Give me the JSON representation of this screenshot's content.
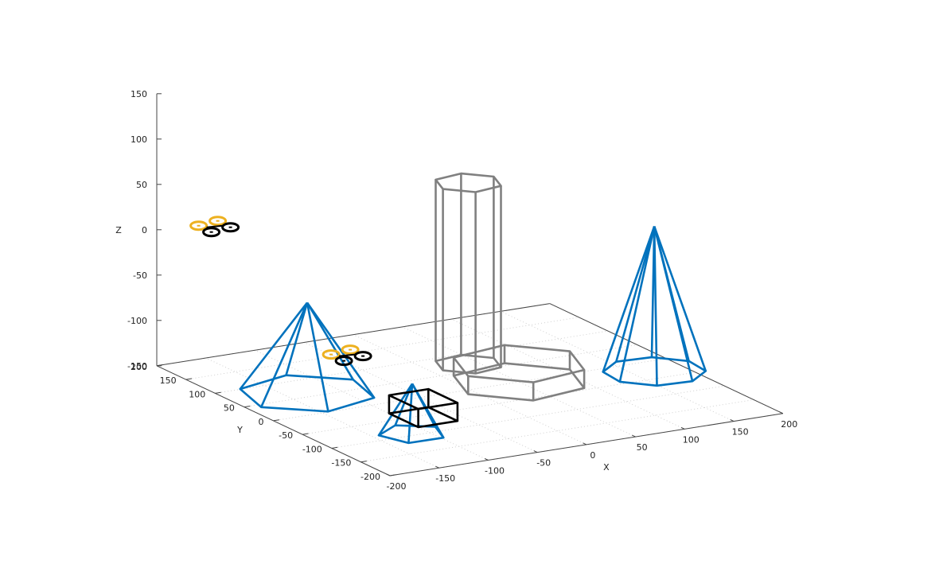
{
  "chart_data": {
    "type": "3d-wireframe",
    "title": "",
    "xlabel": "X",
    "ylabel": "Y",
    "zlabel": "Z",
    "xlim": [
      -200,
      200
    ],
    "ylim": [
      -200,
      200
    ],
    "zlim": [
      -150,
      150
    ],
    "x_ticks": [
      "-200",
      "-150",
      "-100",
      "-50",
      "0",
      "50",
      "100",
      "150",
      "200"
    ],
    "y_ticks": [
      "-200",
      "-150",
      "-100",
      "-50",
      "0",
      "50",
      "100",
      "150",
      "200"
    ],
    "z_ticks": [
      "-150",
      "-100",
      "-50",
      "0",
      "50",
      "100",
      "150"
    ],
    "floor_grid": true,
    "colors": {
      "blue": "#0072bd",
      "gray": "#808080",
      "black": "#000000",
      "gold": "#edb120",
      "grid": "#d0d0d0",
      "axis": "#000000"
    },
    "objects": [
      {
        "name": "pyramid-hexagonal",
        "type": "pyramid",
        "center": [
          -130,
          60
        ],
        "z_base": -150,
        "z_apex": -50,
        "radius": 60,
        "sides": 6,
        "color": "blue"
      },
      {
        "name": "pyramid-pentagonal-small",
        "type": "pyramid",
        "center": [
          -115,
          -95
        ],
        "z_base": -150,
        "z_apex": -95,
        "radius": 30,
        "sides": 5,
        "color": "blue"
      },
      {
        "name": "cone-octagonal",
        "type": "pyramid",
        "center": [
          170,
          -30
        ],
        "z_base": -150,
        "z_apex": 10,
        "radius": 45,
        "sides": 8,
        "color": "blue"
      },
      {
        "name": "hexagonal-prism",
        "type": "prism",
        "center": [
          40,
          70
        ],
        "z_base": -150,
        "z_top": 50,
        "radius": 30,
        "sides": 6,
        "color": "gray"
      },
      {
        "name": "hexagonal-platform",
        "type": "prism",
        "center": [
          50,
          0
        ],
        "z_base": -150,
        "z_top": -130,
        "radius": 60,
        "sides": 6,
        "color": "gray"
      },
      {
        "name": "box",
        "type": "box",
        "xmin": -100,
        "xmax": -60,
        "ymin": -80,
        "ymax": -30,
        "zmin": -150,
        "zmax": -130,
        "color": "black"
      },
      {
        "name": "drone-high",
        "type": "drone",
        "center": [
          -190,
          115
        ],
        "z": 25
      },
      {
        "name": "drone-low",
        "type": "drone",
        "center": [
          -70,
          90
        ],
        "z": -130
      }
    ]
  }
}
